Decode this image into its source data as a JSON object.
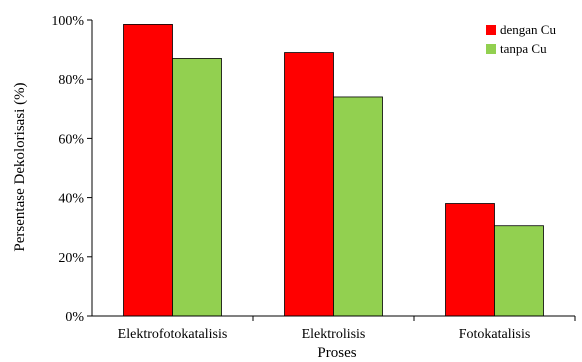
{
  "chart_data": {
    "type": "bar",
    "title": "",
    "xlabel": "Proses",
    "ylabel": "Persentase Dekolorisasi (%)",
    "ylim": [
      0,
      100
    ],
    "yticks": [
      0,
      20,
      40,
      60,
      80,
      100
    ],
    "ytick_labels": [
      "0%",
      "20%",
      "40%",
      "60%",
      "80%",
      "100%"
    ],
    "grid": false,
    "legend_position": "top-right",
    "categories": [
      "Elektrofotokatalisis",
      "Elektrolisis",
      "Fotokatalisis"
    ],
    "series": [
      {
        "name": "dengan Cu",
        "color": "#ff0000",
        "values": [
          98.5,
          89,
          38
        ]
      },
      {
        "name": "tanpa Cu",
        "color": "#92d050",
        "values": [
          87,
          74,
          30.5
        ]
      }
    ]
  }
}
